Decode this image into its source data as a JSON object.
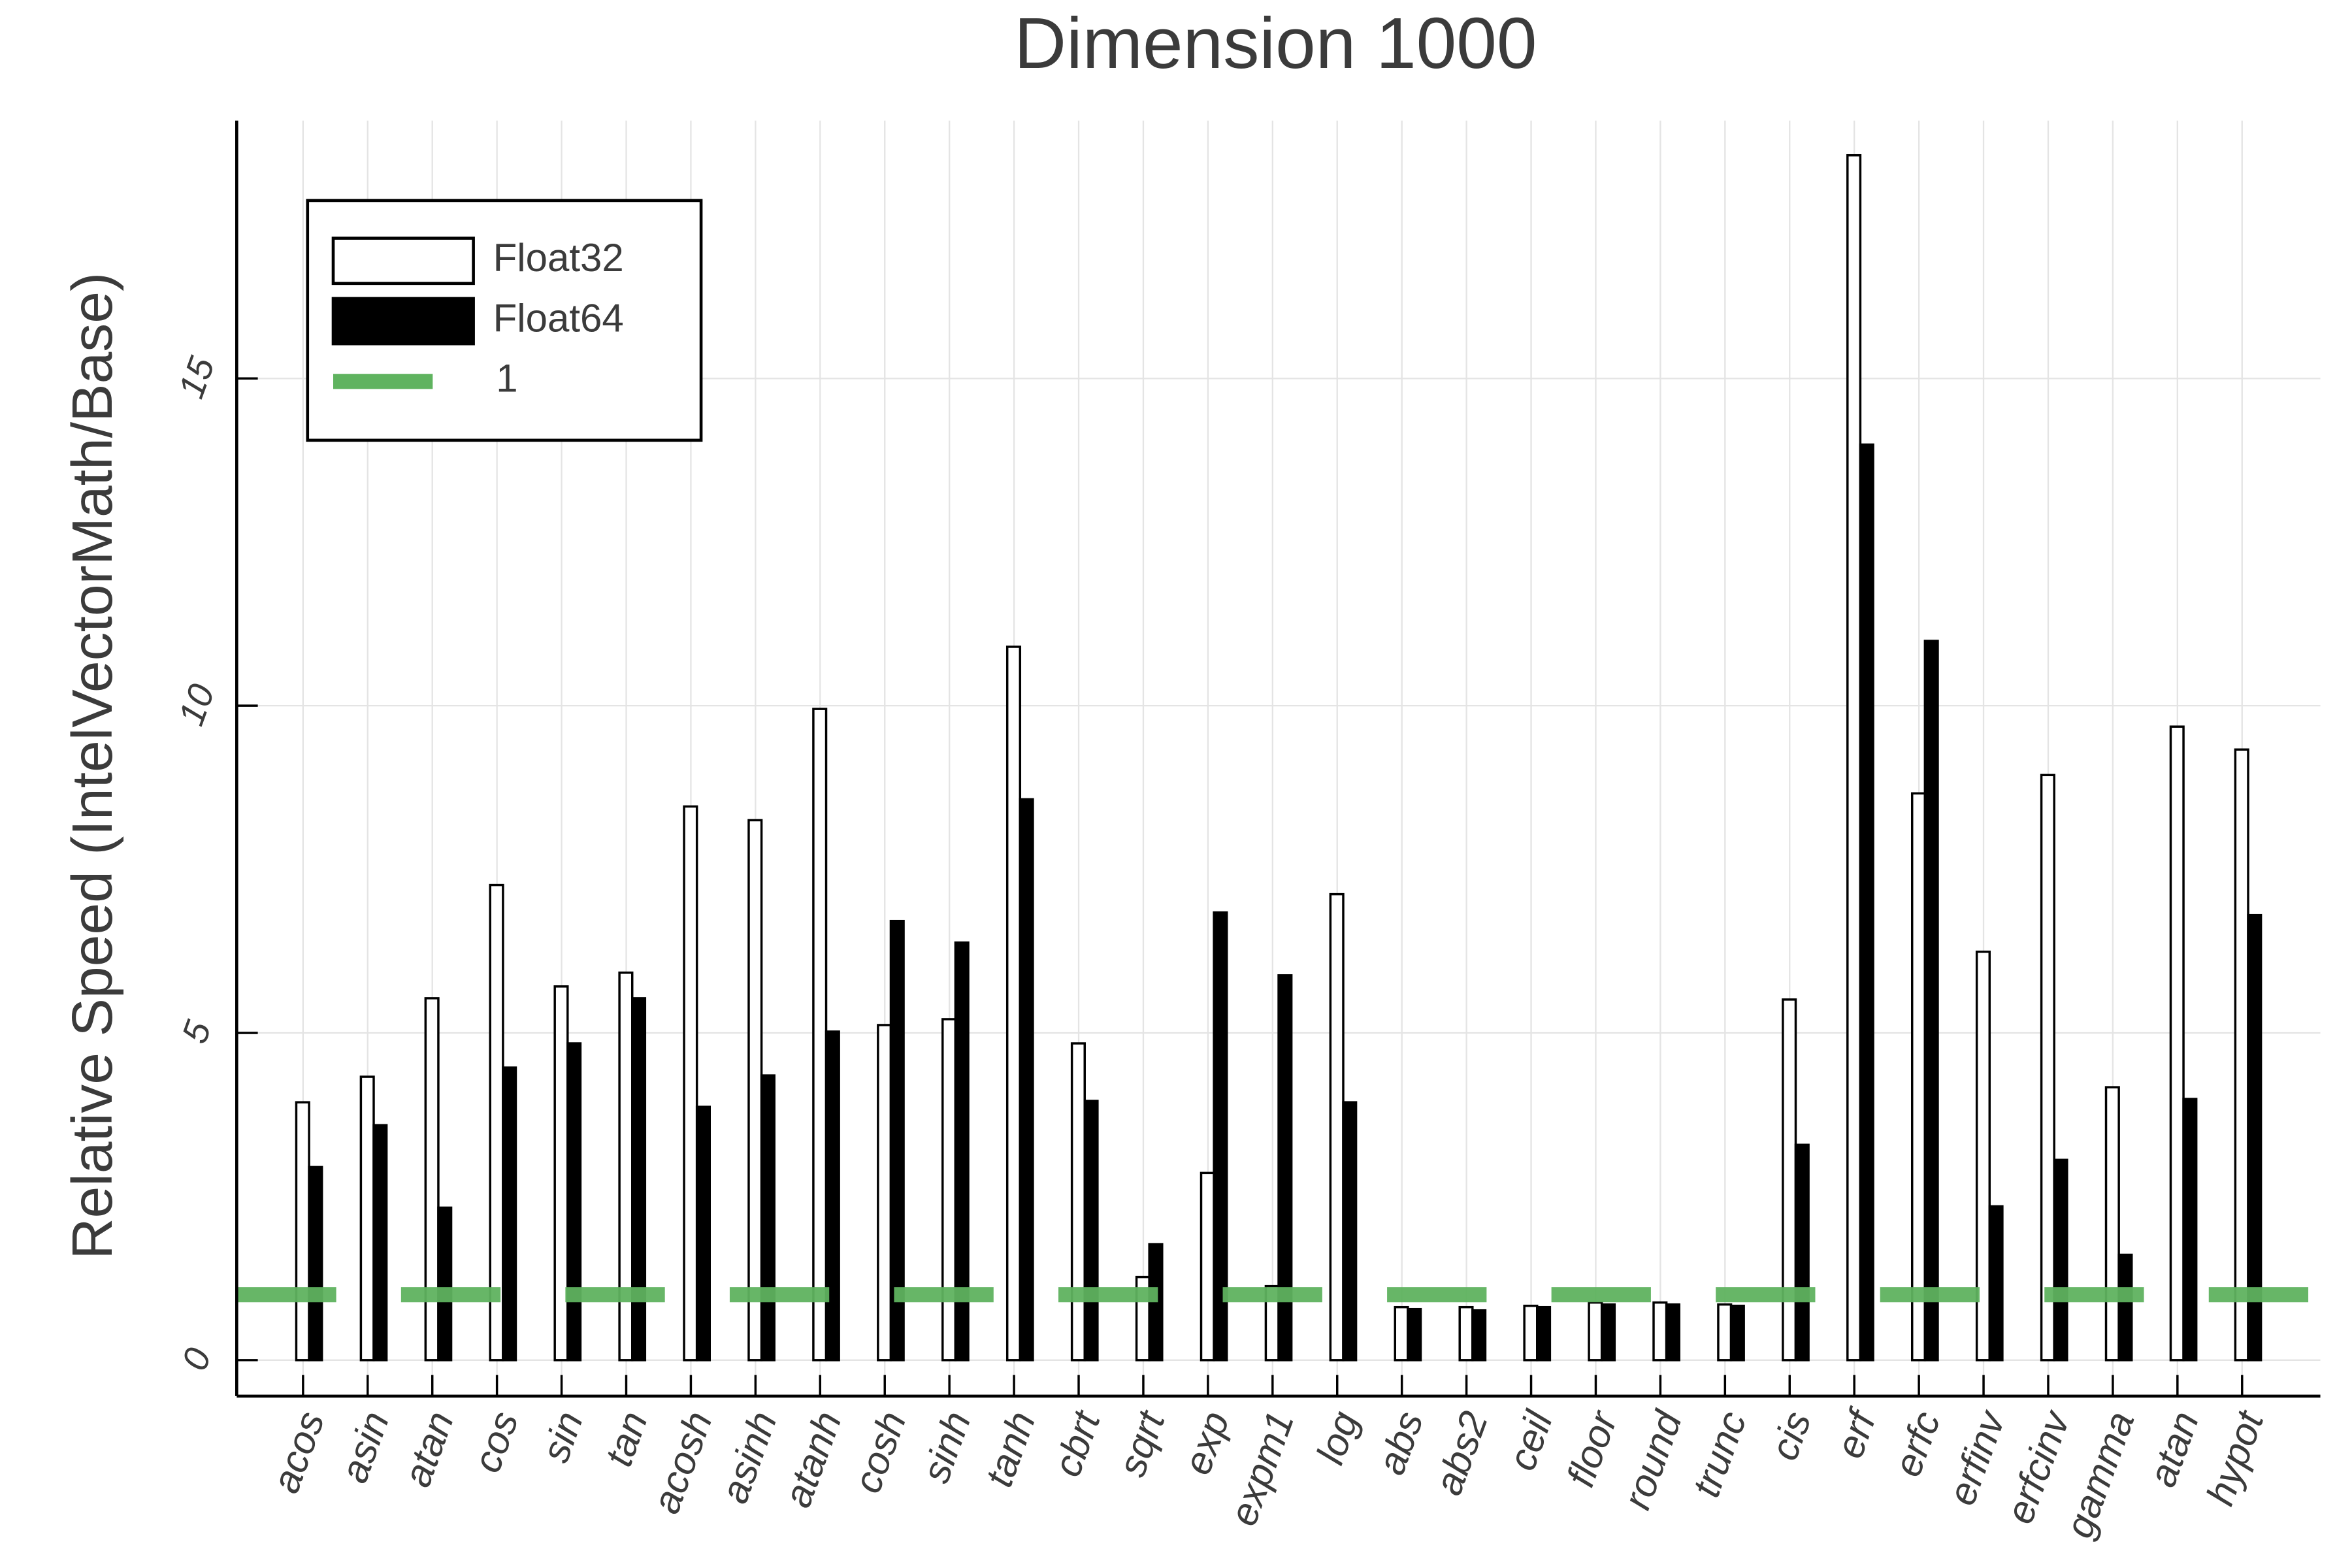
{
  "chart_data": {
    "type": "bar",
    "title": "Dimension 1000",
    "y_label": "Relative Speed (IntelVectorMath/Base)",
    "categories": [
      "acos",
      "asin",
      "atan",
      "cos",
      "sin",
      "tan",
      "acosh",
      "asinh",
      "atanh",
      "cosh",
      "sinh",
      "tanh",
      "cbrt",
      "sqrt",
      "exp",
      "expm1",
      "log",
      "abs",
      "abs2",
      "ceil",
      "floor",
      "round",
      "trunc",
      "cis",
      "erf",
      "erfc",
      "erfinv",
      "erfcinv",
      "gamma",
      "atan",
      "hypot"
    ],
    "series": [
      {
        "name": "Float32",
        "color": "#ffffff",
        "values": [
          3.94,
          4.33,
          5.53,
          7.26,
          5.71,
          5.92,
          8.46,
          8.25,
          9.95,
          5.12,
          5.21,
          10.9,
          4.84,
          1.27,
          2.86,
          1.13,
          7.12,
          0.81,
          0.81,
          0.83,
          0.88,
          0.88,
          0.85,
          5.51,
          18.41,
          8.66,
          6.24,
          8.94,
          4.17,
          9.68,
          9.33
        ]
      },
      {
        "name": "Float64",
        "color": "#000000",
        "values": [
          2.95,
          3.59,
          2.33,
          4.47,
          4.84,
          5.53,
          3.87,
          4.35,
          5.02,
          6.71,
          6.38,
          8.57,
          3.96,
          1.77,
          6.84,
          5.88,
          3.94,
          0.78,
          0.76,
          0.81,
          0.85,
          0.85,
          0.83,
          3.29,
          13.99,
          10.99,
          2.35,
          3.06,
          1.61,
          3.99,
          6.8
        ]
      }
    ],
    "reference_line": {
      "name": "1",
      "value": 1,
      "color": "#5fb35f"
    },
    "ylim": [
      -0.55,
      18.94
    ],
    "yticks": [
      0,
      5,
      10,
      15
    ],
    "grid": true,
    "legend_position": "top-left"
  }
}
